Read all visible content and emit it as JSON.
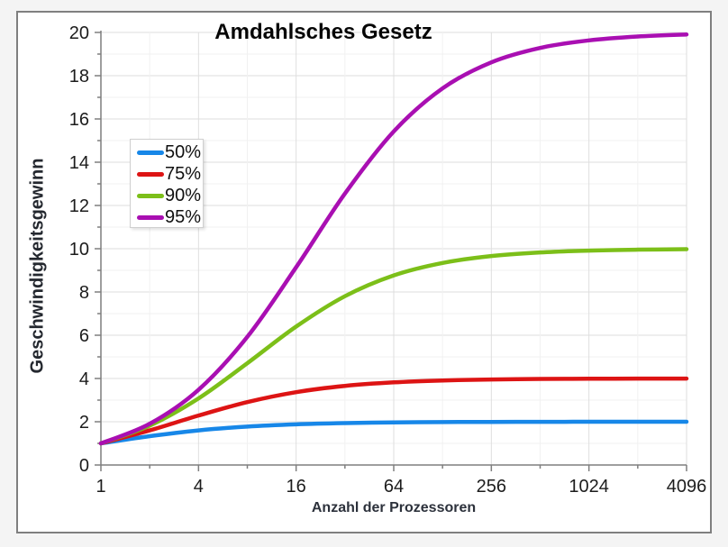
{
  "window": {
    "background_color": "#f4f4f4",
    "chart_border_color": "#7f7f7f",
    "chart_background": "#ffffff"
  },
  "chart_data": {
    "type": "line",
    "title": "Amdahlsches Gesetz",
    "xlabel": "Anzahl der Prozessoren",
    "ylabel": "Geschwindigkeitsgewinn",
    "x_scale": "log2",
    "xlim": [
      1,
      4096
    ],
    "ylim": [
      0,
      20
    ],
    "x_tick_labels": [
      "1",
      "4",
      "16",
      "64",
      "256",
      "1024",
      "4096"
    ],
    "x_tick_values": [
      1,
      4,
      16,
      64,
      256,
      1024,
      4096
    ],
    "y_tick_step": 2,
    "y_minor_step": 1,
    "x_minor_gridlines": "every power of 2",
    "x_major_gridlines": "every power of 4",
    "grid": "major+minor",
    "grid_major_color": "#dedede",
    "grid_minor_color": "#f1f1f1",
    "axis_color": "#7f7f7f",
    "legend_position": "inside upper-left",
    "x": [
      1,
      2,
      4,
      8,
      16,
      32,
      64,
      128,
      256,
      512,
      1024,
      2048,
      4096
    ],
    "series": [
      {
        "name": "50%",
        "parallel_fraction": 0.5,
        "color": "#1787e8",
        "values": [
          1.0,
          1.333,
          1.6,
          1.778,
          1.882,
          1.939,
          1.969,
          1.984,
          1.992,
          1.996,
          1.998,
          1.999,
          2.0
        ]
      },
      {
        "name": "75%",
        "parallel_fraction": 0.75,
        "color": "#dd1414",
        "values": [
          1.0,
          1.6,
          2.286,
          2.909,
          3.368,
          3.657,
          3.821,
          3.908,
          3.954,
          3.977,
          3.988,
          3.994,
          3.997
        ]
      },
      {
        "name": "90%",
        "parallel_fraction": 0.9,
        "color": "#7cbf19",
        "values": [
          1.0,
          1.818,
          3.077,
          4.706,
          6.4,
          7.805,
          8.767,
          9.343,
          9.66,
          9.827,
          9.913,
          9.956,
          9.978
        ]
      },
      {
        "name": "95%",
        "parallel_fraction": 0.95,
        "color": "#a90fb2",
        "values": [
          1.0,
          1.905,
          3.478,
          5.926,
          9.143,
          12.549,
          15.422,
          17.415,
          18.618,
          19.284,
          19.633,
          19.813,
          19.907
        ]
      }
    ]
  }
}
